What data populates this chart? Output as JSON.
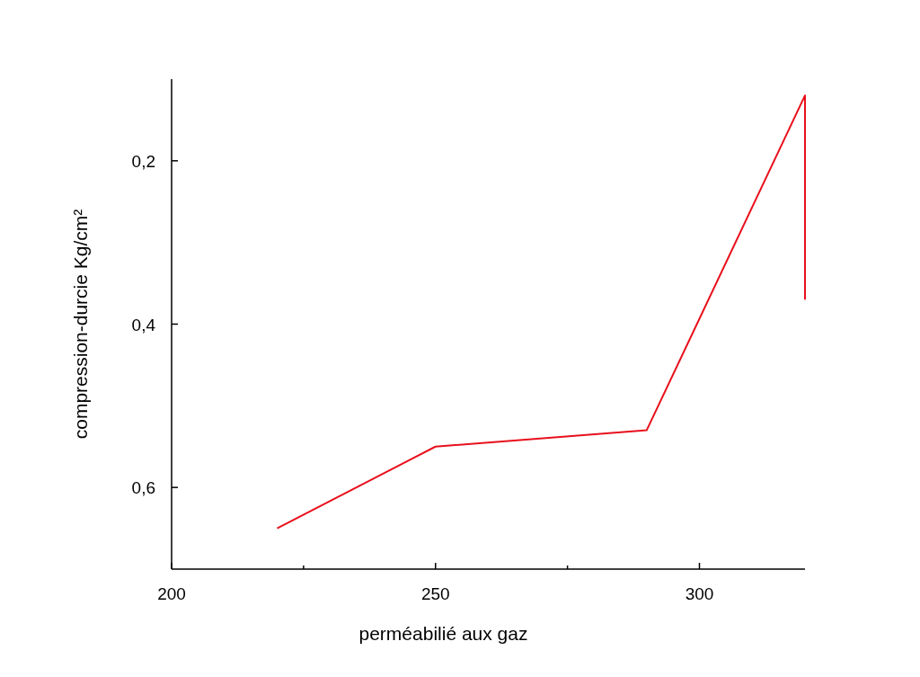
{
  "chart_data": {
    "type": "line",
    "xlabel": "perméabilié aux gaz",
    "ylabel": "compression-durcie   Kg/cm²",
    "x": [
      220,
      250,
      290,
      320,
      320
    ],
    "series": [
      {
        "color": "#e8101c",
        "values": [
          0.65,
          0.55,
          0.53,
          0.12,
          0.37
        ]
      }
    ],
    "xlim": [
      200,
      320
    ],
    "xticks": [
      200,
      {
        "value": 225,
        "label": null
      },
      250,
      {
        "value": 275,
        "label": null
      },
      300
    ],
    "ylim": [
      0.7,
      0.1
    ],
    "yticks": [
      {
        "value": 0.2,
        "label": "0,2"
      },
      {
        "value": 0.4,
        "label": "0,4"
      },
      {
        "value": 0.6,
        "label": "0,6"
      }
    ],
    "marker": "none",
    "line_style": "solid"
  }
}
